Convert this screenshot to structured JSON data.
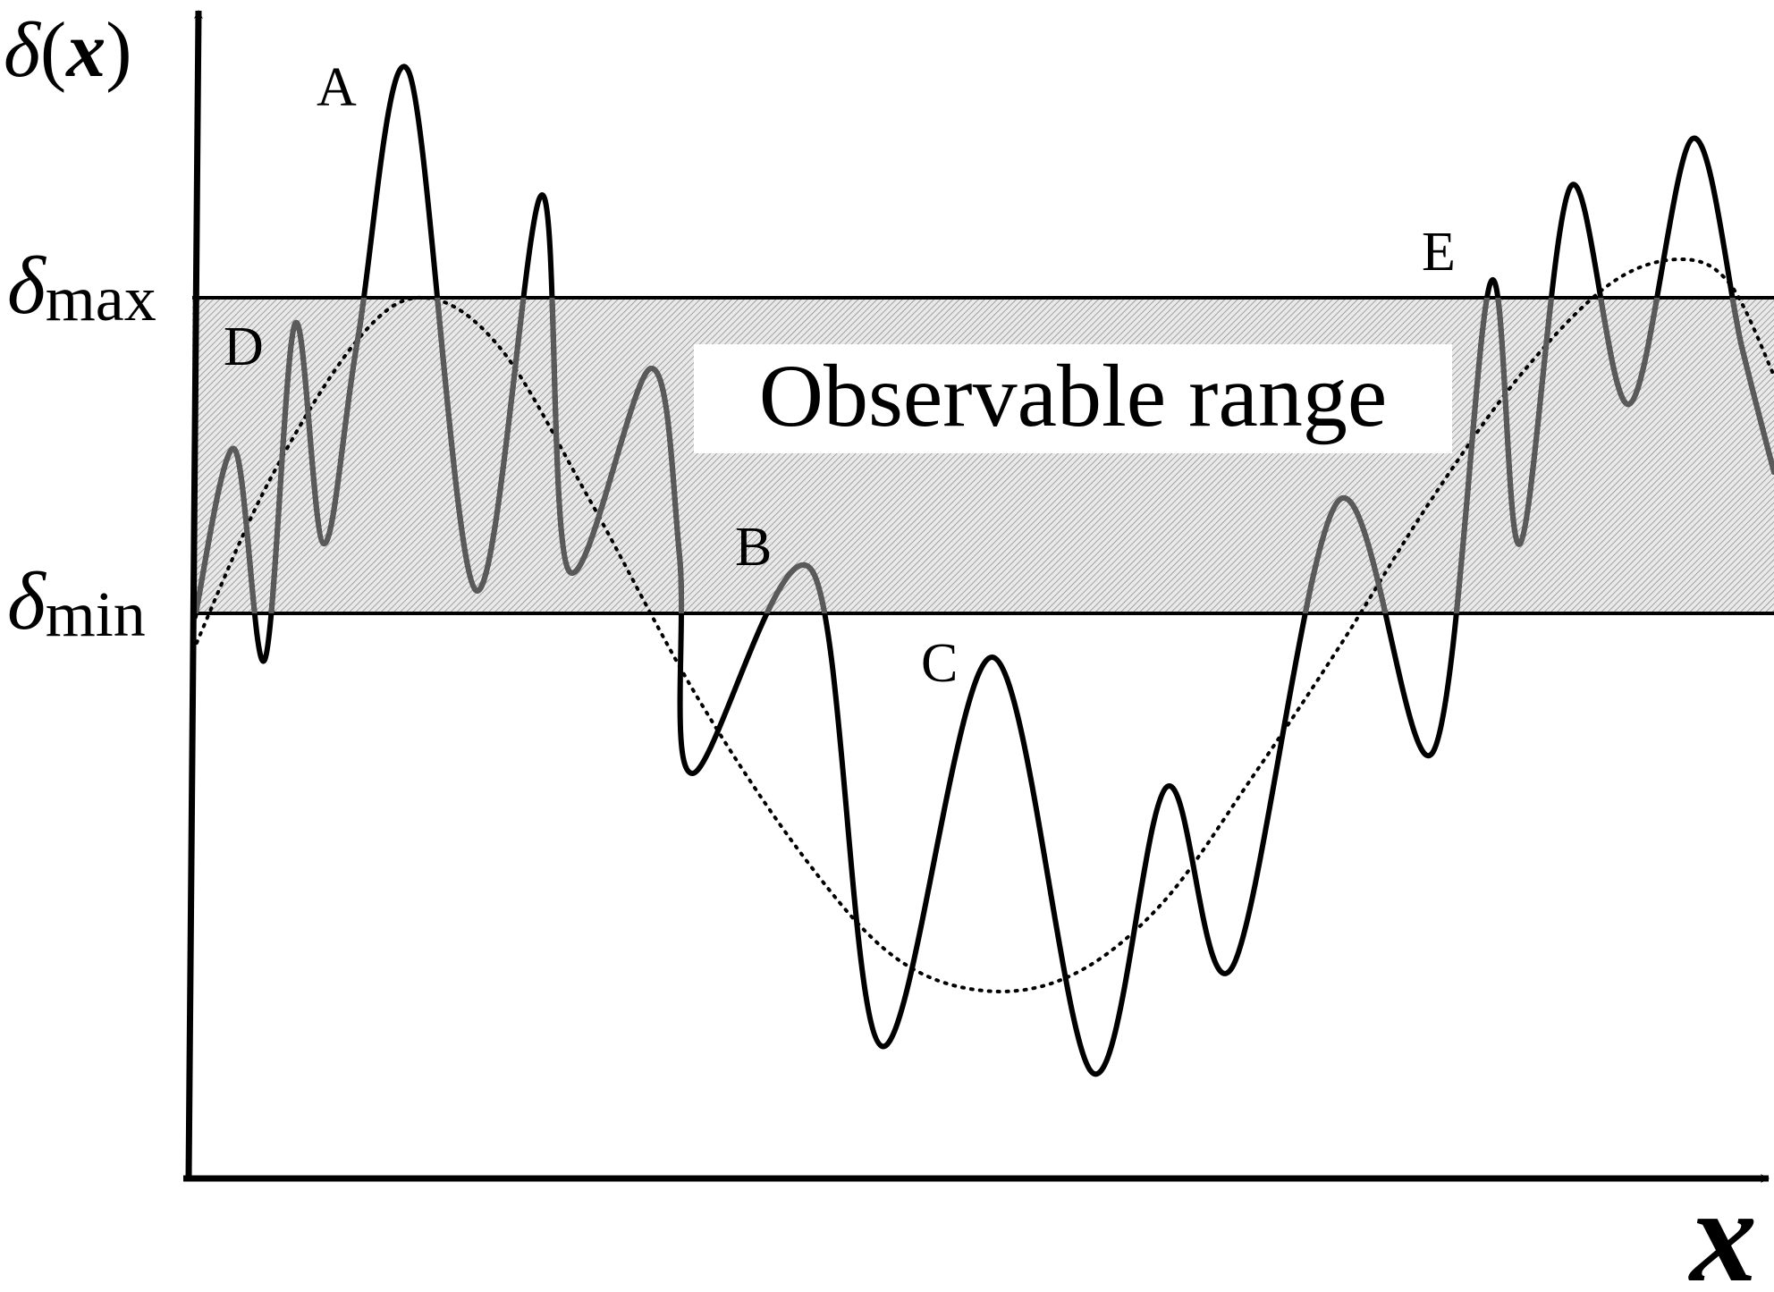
{
  "y_axis_label": "δ(x)",
  "y_axis_label_parts": {
    "delta": "δ",
    "open": "(",
    "x": "x",
    "close": ")"
  },
  "x_axis_label": "x",
  "levels": {
    "max": {
      "symbol": "δ",
      "subscript": "max"
    },
    "min": {
      "symbol": "δ",
      "subscript": "min"
    }
  },
  "band_label": "Observable range",
  "points": {
    "A": "A",
    "B": "B",
    "C": "C",
    "D": "D",
    "E": "E"
  },
  "colors": {
    "ink": "#000000",
    "band_hatch": "#9a9a9a",
    "band_fill": "#e6e6e6",
    "label_background": "#ffffff"
  },
  "curves": {
    "solid": "oscillating profile, thick black line, grey where it passes inside the observable band",
    "dotted": "smooth underlying trend, dotted line"
  }
}
